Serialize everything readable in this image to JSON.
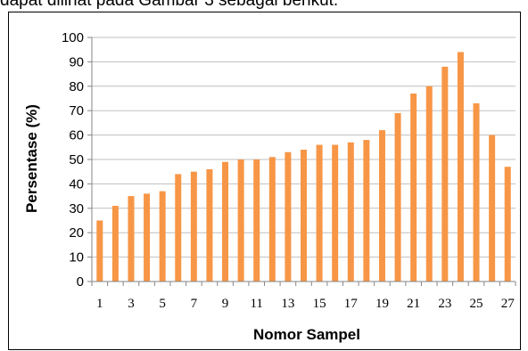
{
  "header_text": "dapat dilihat pada Gambar 3 sebagai berikut.",
  "colors": {
    "bar": "#F79646",
    "grid": "#BFBFBF",
    "axis": "#868686"
  },
  "chart_data": {
    "type": "bar",
    "title": "",
    "xlabel": "Nomor Sampel",
    "ylabel": "Persentase (%)",
    "ylim": [
      0,
      100
    ],
    "yticks": [
      0,
      10,
      20,
      30,
      40,
      50,
      60,
      70,
      80,
      90,
      100
    ],
    "grid": true,
    "categories": [
      "1",
      "2",
      "3",
      "4",
      "5",
      "6",
      "7",
      "8",
      "9",
      "10",
      "11",
      "12",
      "13",
      "14",
      "15",
      "16",
      "17",
      "18",
      "19",
      "20",
      "21",
      "22",
      "23",
      "24",
      "25",
      "26",
      "27"
    ],
    "xtick_labels": [
      "1",
      "3",
      "5",
      "7",
      "9",
      "11",
      "13",
      "15",
      "17",
      "19",
      "21",
      "23",
      "25",
      "27"
    ],
    "values": [
      25,
      31,
      35,
      36,
      37,
      44,
      45,
      46,
      49,
      50,
      50,
      51,
      53,
      54,
      56,
      56,
      57,
      58,
      62,
      69,
      77,
      80,
      88,
      94,
      73,
      60,
      47
    ]
  }
}
